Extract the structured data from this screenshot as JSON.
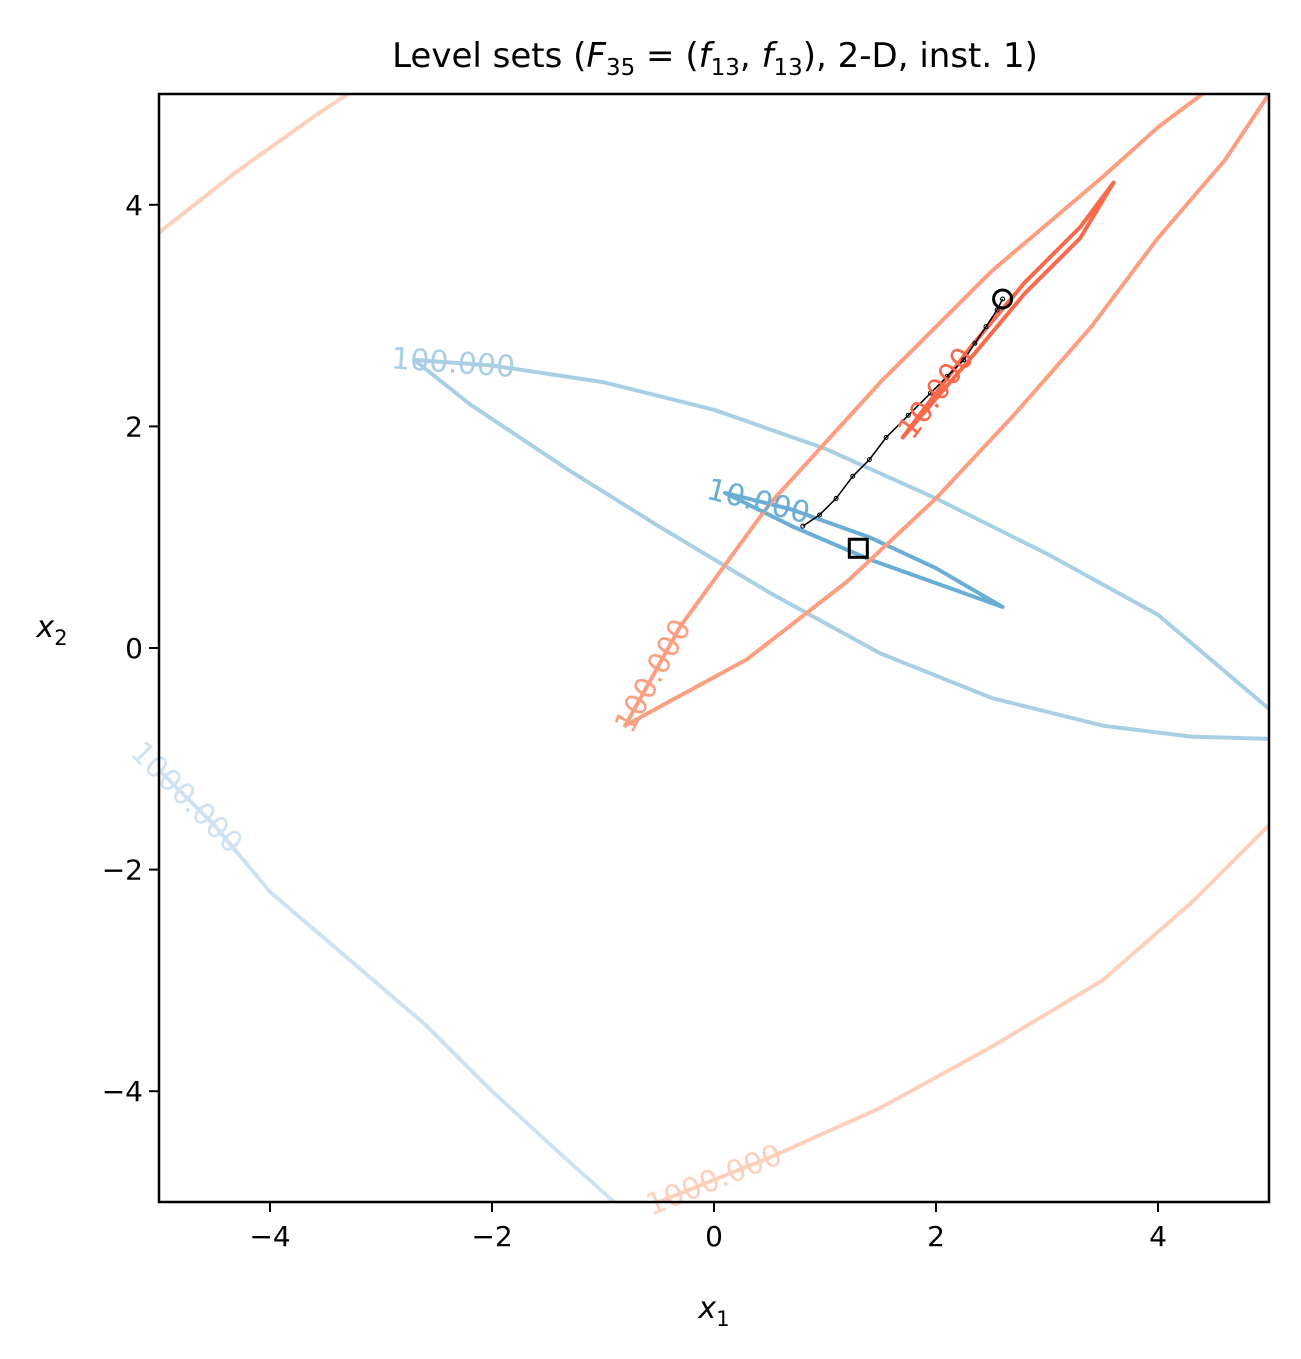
{
  "chart_data": {
    "type": "contour",
    "title": {
      "prefix": "Level sets (",
      "F": "F",
      "F_sub": "35",
      "eq": " = (",
      "f1": "f",
      "f1_sub": "13",
      "comma": ", ",
      "f2": "f",
      "f2_sub": "13",
      "suffix": "), 2-D, inst. 1)"
    },
    "xlabel": {
      "base": "x",
      "sub": "1"
    },
    "ylabel": {
      "base": "x",
      "sub": "2"
    },
    "xlim": [
      -5,
      5
    ],
    "ylim": [
      -5,
      5
    ],
    "xticks": [
      -4,
      -2,
      0,
      2,
      4
    ],
    "yticks": [
      -4,
      -2,
      0,
      2,
      4
    ],
    "tick_labels": [
      "−4",
      "−2",
      "0",
      "2",
      "4"
    ],
    "grid": false,
    "colors": {
      "blue_10": "#6aaed6",
      "blue_100": "#a9cfe5",
      "blue_1000": "#d0e1f2",
      "red_10": "#f9694c",
      "red_100": "#fc9f81",
      "red_1000": "#fdd0bc",
      "path": "#000000"
    },
    "series": [
      {
        "key": "blue_1000",
        "label": "1000.000",
        "points": [
          [
            -5,
            -1.1
          ],
          [
            -4.5,
            -1.6
          ],
          [
            -4.0,
            -2.2
          ],
          [
            -3.3,
            -2.8
          ],
          [
            -2.6,
            -3.4
          ],
          [
            -2.0,
            -4.0
          ],
          [
            -1.4,
            -4.55
          ],
          [
            -0.9,
            -5
          ]
        ]
      },
      {
        "key": "blue_100",
        "label": "100.000",
        "points": [
          [
            -2.7,
            2.6
          ],
          [
            -2.0,
            2.55
          ],
          [
            -1.0,
            2.4
          ],
          [
            0.0,
            2.15
          ],
          [
            1.0,
            1.8
          ],
          [
            2.0,
            1.35
          ],
          [
            3.0,
            0.85
          ],
          [
            4.0,
            0.3
          ],
          [
            5.0,
            -0.55
          ]
        ]
      },
      {
        "key": "blue_100",
        "points": [
          [
            -2.7,
            2.6
          ],
          [
            -2.2,
            2.2
          ],
          [
            -1.3,
            1.6
          ],
          [
            -0.5,
            1.1
          ],
          [
            0.5,
            0.5
          ],
          [
            1.5,
            -0.05
          ],
          [
            2.5,
            -0.45
          ],
          [
            3.5,
            -0.7
          ],
          [
            4.3,
            -0.8
          ],
          [
            5.0,
            -0.82
          ]
        ]
      },
      {
        "key": "blue_10",
        "label": "10.000",
        "points": [
          [
            0.1,
            1.4
          ],
          [
            0.7,
            1.25
          ],
          [
            1.4,
            1.0
          ],
          [
            2.0,
            0.72
          ],
          [
            2.6,
            0.37
          ],
          [
            2.1,
            0.55
          ],
          [
            1.4,
            0.8
          ],
          [
            0.7,
            1.1
          ],
          [
            0.1,
            1.4
          ]
        ]
      },
      {
        "key": "red_1000",
        "points": [
          [
            -5,
            3.75
          ],
          [
            -4.3,
            4.3
          ],
          [
            -3.6,
            4.8
          ],
          [
            -3.3,
            5.0
          ]
        ]
      },
      {
        "key": "red_1000",
        "label": "1000.000",
        "points": [
          [
            -0.5,
            -5.0
          ],
          [
            0.5,
            -4.6
          ],
          [
            1.5,
            -4.15
          ],
          [
            2.5,
            -3.6
          ],
          [
            3.5,
            -3.0
          ],
          [
            4.3,
            -2.3
          ],
          [
            5.0,
            -1.6
          ]
        ]
      },
      {
        "key": "red_100",
        "label": "100.000",
        "points": [
          [
            -0.8,
            -0.7
          ],
          [
            -0.3,
            0.2
          ],
          [
            0.5,
            1.3
          ],
          [
            1.5,
            2.4
          ],
          [
            2.5,
            3.4
          ],
          [
            3.5,
            4.25
          ],
          [
            4.0,
            4.7
          ],
          [
            4.4,
            5.0
          ]
        ]
      },
      {
        "key": "red_100",
        "points": [
          [
            -0.8,
            -0.7
          ],
          [
            0.3,
            -0.1
          ],
          [
            1.2,
            0.6
          ],
          [
            2.0,
            1.35
          ],
          [
            2.7,
            2.1
          ],
          [
            3.4,
            2.9
          ],
          [
            4.0,
            3.7
          ],
          [
            4.6,
            4.4
          ],
          [
            5.0,
            5.0
          ]
        ]
      },
      {
        "key": "red_10",
        "label": "10.000",
        "points": [
          [
            1.7,
            1.9
          ],
          [
            2.3,
            2.7
          ],
          [
            2.8,
            3.3
          ],
          [
            3.3,
            3.8
          ],
          [
            3.6,
            4.2
          ],
          [
            3.3,
            3.7
          ],
          [
            2.8,
            3.2
          ],
          [
            2.3,
            2.6
          ],
          [
            1.7,
            1.9
          ]
        ]
      }
    ],
    "path": {
      "key": "path",
      "points": [
        [
          0.8,
          1.1
        ],
        [
          0.95,
          1.2
        ],
        [
          1.1,
          1.35
        ],
        [
          1.25,
          1.55
        ],
        [
          1.4,
          1.7
        ],
        [
          1.55,
          1.9
        ],
        [
          1.75,
          2.1
        ],
        [
          1.95,
          2.3
        ],
        [
          2.1,
          2.45
        ],
        [
          2.25,
          2.6
        ],
        [
          2.35,
          2.75
        ],
        [
          2.45,
          2.9
        ],
        [
          2.55,
          3.05
        ],
        [
          2.6,
          3.15
        ]
      ]
    },
    "start_marker": {
      "x": 1.3,
      "y": 0.9,
      "shape": "square"
    },
    "end_marker": {
      "x": 2.6,
      "y": 3.15,
      "shape": "circle"
    }
  }
}
